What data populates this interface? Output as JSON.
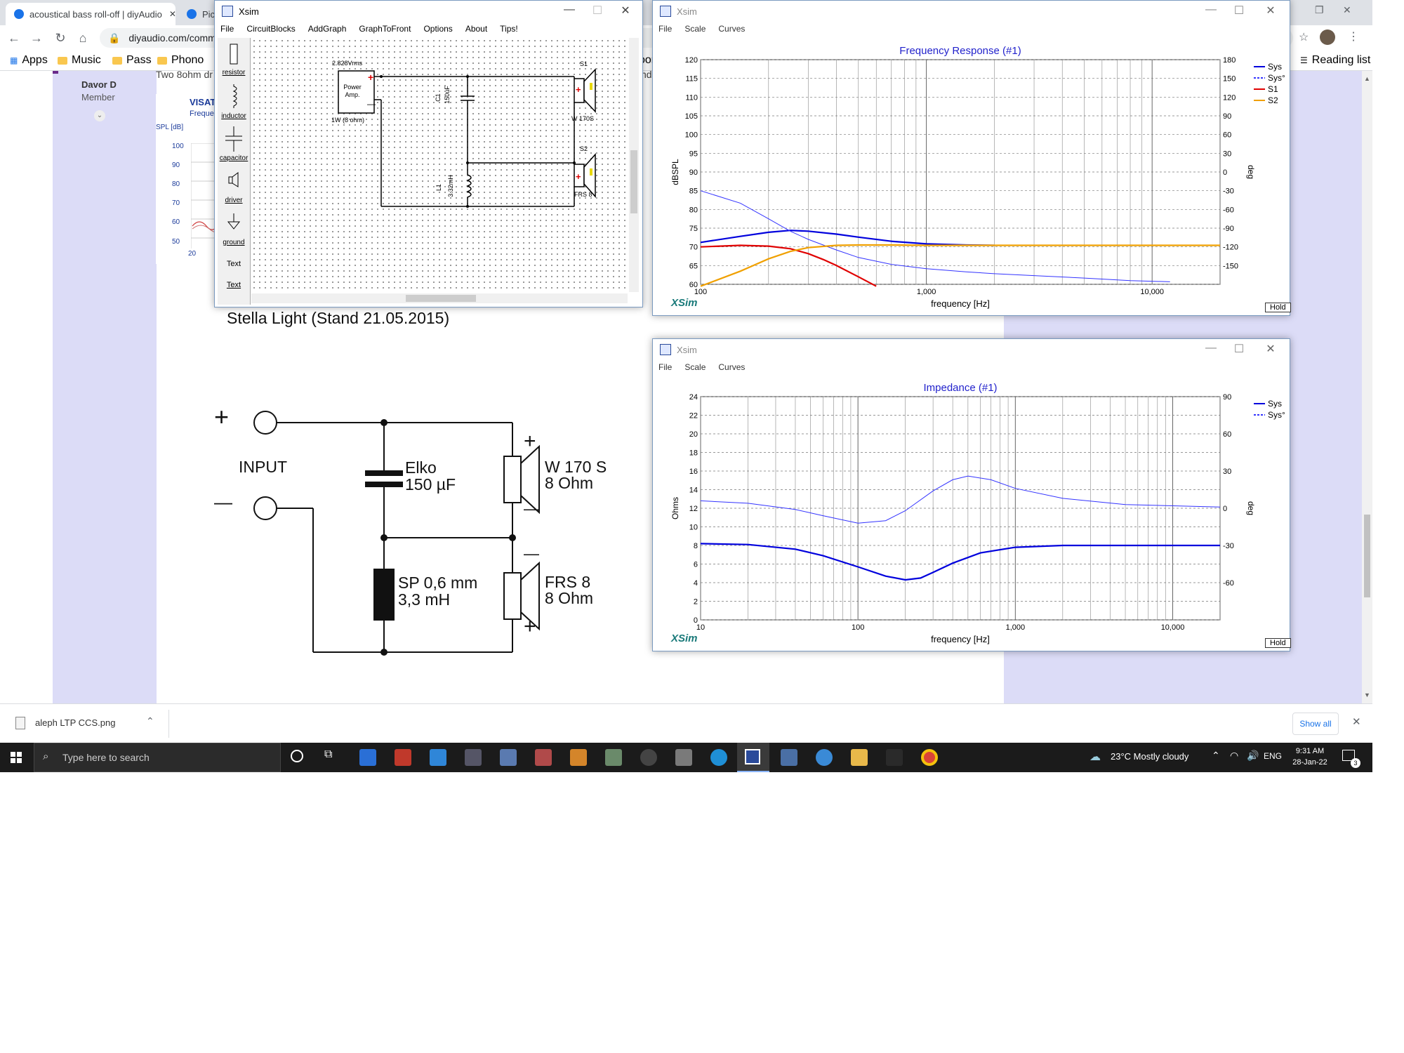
{
  "browser": {
    "tabs": [
      {
        "title": "acoustical bass roll-off | diyAudio"
      },
      {
        "title": "Pict"
      }
    ],
    "url": "diyaudio.com/comm",
    "bookmarks": [
      "Apps",
      "Music",
      "Pass",
      "Phono",
      "oor"
    ],
    "reading_list": "Reading list",
    "close_glyph": "✕"
  },
  "forum": {
    "username": "Davor D",
    "role": "Member",
    "post_snippet": "Two 8ohm dr",
    "right_snippet": "nd",
    "visaton_title": "VISAT",
    "visaton_subtitle": "Frequer",
    "visaton_axis": "SPL [dB]",
    "visaton_ticks": [
      "100",
      "90",
      "80",
      "70",
      "60",
      "50"
    ],
    "visaton_x": "20",
    "schematic_title": "Stella Light (Stand 21.05.2015)",
    "schematic": {
      "plus": "+",
      "minus": "—",
      "input": "INPUT",
      "cap_line1": "Elko",
      "cap_line2": "150 µF",
      "coil_line1": "SP 0,6 mm",
      "coil_line2": "3,3 mH",
      "w170_line1": "W 170 S",
      "w170_line2": "8 Ohm",
      "frs_line1": "FRS 8",
      "frs_line2": "8 Ohm"
    }
  },
  "xsim_main": {
    "title": "Xsim",
    "menu": [
      "File",
      "CircuitBlocks",
      "AddGraph",
      "GraphToFront",
      "Options",
      "About",
      "Tips!"
    ],
    "palette": [
      "resistor",
      "inductor",
      "capacitor",
      "driver",
      "ground",
      "Text",
      "Text"
    ],
    "circuit": {
      "voltage": "2.828Vrms",
      "amp_line1": "Power",
      "amp_line2": "Amp.",
      "amp_power": "1W (8 ohm)",
      "c1": "C1",
      "c1_value": "150uF",
      "l1": "L1",
      "l1_value": "3.32mH",
      "s1": "S1",
      "s1_name": "W 170S",
      "s2": "S2",
      "s2_name": "FRS 8"
    }
  },
  "freq_window": {
    "title": "Xsim",
    "menu": [
      "File",
      "Scale",
      "Curves"
    ],
    "hold": "Hold",
    "brand": "XSim"
  },
  "imp_window": {
    "title": "Xsim",
    "menu": [
      "File",
      "Scale",
      "Curves"
    ],
    "hold": "Hold",
    "brand": "XSim"
  },
  "chart_data": [
    {
      "type": "line",
      "title": "Frequency Response (#1)",
      "xlabel": "frequency [Hz]",
      "ylabel": "dBSPL",
      "y2label": "deg",
      "xscale": "log",
      "xlim": [
        100,
        20000
      ],
      "ylim": [
        60,
        120
      ],
      "y2lim": [
        -180,
        180
      ],
      "xticks": [
        "100",
        "1,000",
        "10,000"
      ],
      "yticks": [
        "120",
        "115",
        "110",
        "105",
        "100",
        "95",
        "90",
        "85",
        "80",
        "75",
        "70",
        "65",
        "60"
      ],
      "y2ticks": [
        "180",
        "150",
        "120",
        "90",
        "60",
        "30",
        "0",
        "-30",
        "-60",
        "-90",
        "-120",
        "-150"
      ],
      "grid": true,
      "legend": "right",
      "colors": {
        "Sys": "#0000dd",
        "Sys°": "#3333ff",
        "S1": "#e00000",
        "S2": "#f0a000"
      },
      "series": [
        {
          "name": "Sys",
          "axis": "left",
          "x": [
            100,
            150,
            200,
            250,
            300,
            400,
            500,
            700,
            1000,
            1500,
            2000
          ],
          "y": [
            71.2,
            72.8,
            73.9,
            74.4,
            74.2,
            73.4,
            72.6,
            71.5,
            70.8,
            70.5,
            70.4
          ]
        },
        {
          "name": "Sys°",
          "axis": "right",
          "x": [
            100,
            150,
            200,
            250,
            300,
            400,
            500,
            700,
            1000,
            1500,
            2000,
            3000,
            5000,
            8000,
            12000
          ],
          "y": [
            -30,
            -50,
            -75,
            -95,
            -108,
            -125,
            -137,
            -148,
            -155,
            -160,
            -163,
            -166,
            -170,
            -174,
            -176
          ]
        },
        {
          "name": "S1",
          "axis": "left",
          "x": [
            100,
            150,
            200,
            250,
            300,
            350,
            400,
            500,
            600
          ],
          "y": [
            70,
            70.4,
            70.2,
            69.5,
            68.2,
            66.6,
            65,
            62,
            59.5
          ]
        },
        {
          "name": "S2",
          "axis": "left",
          "x": [
            100,
            150,
            200,
            250,
            300,
            400,
            500,
            700,
            1000,
            2000,
            5000,
            10000,
            20000
          ],
          "y": [
            59.5,
            63.5,
            66.8,
            68.8,
            69.8,
            70.4,
            70.5,
            70.5,
            70.4,
            70.4,
            70.4,
            70.4,
            70.4
          ]
        }
      ]
    },
    {
      "type": "line",
      "title": "Impedance (#1)",
      "xlabel": "frequency [Hz]",
      "ylabel": "Ohms",
      "y2label": "deg",
      "xscale": "log",
      "xlim": [
        10,
        20000
      ],
      "ylim": [
        0,
        24
      ],
      "y2lim": [
        -90,
        90
      ],
      "xticks": [
        "10",
        "100",
        "1,000",
        "10,000"
      ],
      "yticks": [
        "24",
        "22",
        "20",
        "18",
        "16",
        "14",
        "12",
        "10",
        "8",
        "6",
        "4",
        "2",
        "0"
      ],
      "y2ticks": [
        "90",
        "60",
        "30",
        "0",
        "-30",
        "-60"
      ],
      "grid": true,
      "legend": "right",
      "colors": {
        "Sys": "#0000dd",
        "Sys°": "#3333ff"
      },
      "series": [
        {
          "name": "Sys",
          "axis": "left",
          "x": [
            10,
            20,
            40,
            60,
            100,
            150,
            200,
            250,
            300,
            400,
            600,
            1000,
            2000,
            5000,
            20000
          ],
          "y": [
            8.2,
            8.1,
            7.6,
            6.9,
            5.7,
            4.7,
            4.3,
            4.5,
            5.1,
            6.1,
            7.2,
            7.8,
            8.0,
            8.0,
            8.0
          ]
        },
        {
          "name": "Sys°",
          "axis": "right",
          "x": [
            10,
            20,
            40,
            60,
            100,
            150,
            200,
            300,
            400,
            500,
            700,
            1000,
            2000,
            5000,
            20000
          ],
          "y": [
            6,
            4,
            -1,
            -6,
            -12,
            -10,
            -2,
            14,
            23,
            26,
            23,
            16,
            8,
            3,
            1
          ]
        }
      ]
    }
  ],
  "downloads": {
    "file": "aleph LTP CCS.png",
    "show_all": "Show all"
  },
  "taskbar": {
    "search_placeholder": "Type here to search",
    "weather": "23°C  Mostly cloudy",
    "language": "ENG",
    "time": "9:31 AM",
    "date": "28-Jan-22",
    "notification_count": "3"
  }
}
